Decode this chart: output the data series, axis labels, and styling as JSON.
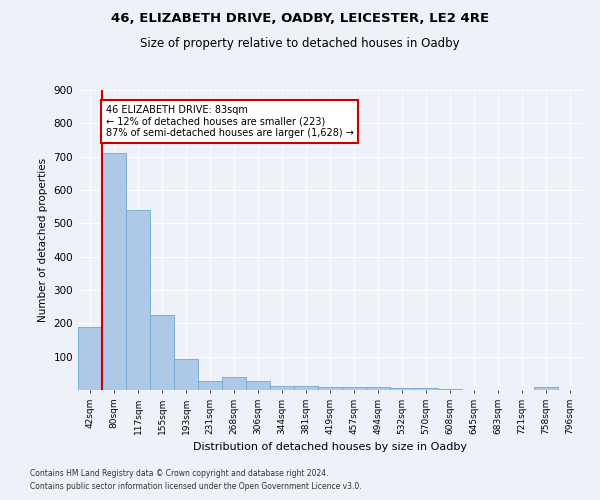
{
  "title": "46, ELIZABETH DRIVE, OADBY, LEICESTER, LE2 4RE",
  "subtitle": "Size of property relative to detached houses in Oadby",
  "xlabel": "Distribution of detached houses by size in Oadby",
  "ylabel": "Number of detached properties",
  "bar_color": "#aec9e8",
  "bar_edge_color": "#6aaad4",
  "background_color": "#eef2f8",
  "fig_background_color": "#eef2f8",
  "grid_color": "#ffffff",
  "categories": [
    "42sqm",
    "80sqm",
    "117sqm",
    "155sqm",
    "193sqm",
    "231sqm",
    "268sqm",
    "306sqm",
    "344sqm",
    "381sqm",
    "419sqm",
    "457sqm",
    "494sqm",
    "532sqm",
    "570sqm",
    "608sqm",
    "645sqm",
    "683sqm",
    "721sqm",
    "758sqm",
    "796sqm"
  ],
  "values": [
    190,
    710,
    540,
    225,
    93,
    28,
    40,
    27,
    13,
    11,
    10,
    8,
    8,
    7,
    5,
    4,
    0,
    0,
    0,
    8,
    0
  ],
  "property_line_color": "#cc0000",
  "annotation_text": "46 ELIZABETH DRIVE: 83sqm\n← 12% of detached houses are smaller (223)\n87% of semi-detached houses are larger (1,628) →",
  "annotation_box_edge_color": "#cc0000",
  "annotation_box_facecolor": "#ffffff",
  "ylim": [
    0,
    900
  ],
  "yticks": [
    0,
    100,
    200,
    300,
    400,
    500,
    600,
    700,
    800,
    900
  ],
  "footnote1": "Contains HM Land Registry data © Crown copyright and database right 2024.",
  "footnote2": "Contains public sector information licensed under the Open Government Licence v3.0."
}
